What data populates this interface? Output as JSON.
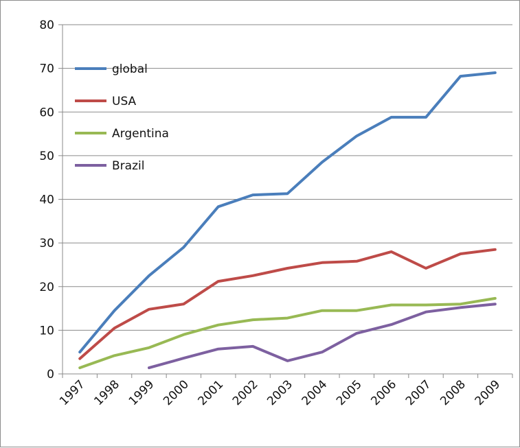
{
  "chart_data": {
    "type": "line",
    "title": "",
    "xlabel": "",
    "ylabel": "",
    "categories": [
      "1997",
      "1998",
      "1999",
      "2000",
      "2001",
      "2002",
      "2003",
      "2004",
      "2005",
      "2006",
      "2007",
      "2008",
      "2009"
    ],
    "ylim": [
      0,
      80
    ],
    "yticks": [
      0,
      10,
      20,
      30,
      40,
      50,
      60,
      70,
      80
    ],
    "grid": true,
    "legend_position": "top-left",
    "series": [
      {
        "name": "global",
        "color": "#4a7ebb",
        "values": [
          5,
          14.5,
          22.5,
          29,
          38.3,
          41,
          41.3,
          48.5,
          54.5,
          58.8,
          58.8,
          68.2,
          69
        ]
      },
      {
        "name": "USA",
        "color": "#be4b48",
        "values": [
          3.5,
          10.5,
          14.8,
          16,
          21.2,
          22.5,
          24.2,
          25.5,
          25.8,
          28,
          24.2,
          27.5,
          28.5
        ]
      },
      {
        "name": "Argentina",
        "color": "#98b954",
        "values": [
          1.4,
          4.2,
          6,
          9,
          11.2,
          12.4,
          12.8,
          14.5,
          14.5,
          15.8,
          15.8,
          16,
          17.3
        ]
      },
      {
        "name": "Brazil",
        "color": "#7d60a0",
        "values": [
          null,
          null,
          1.4,
          3.6,
          5.7,
          6.3,
          3,
          5,
          9.3,
          11.3,
          14.2,
          15.2,
          16
        ]
      }
    ]
  }
}
